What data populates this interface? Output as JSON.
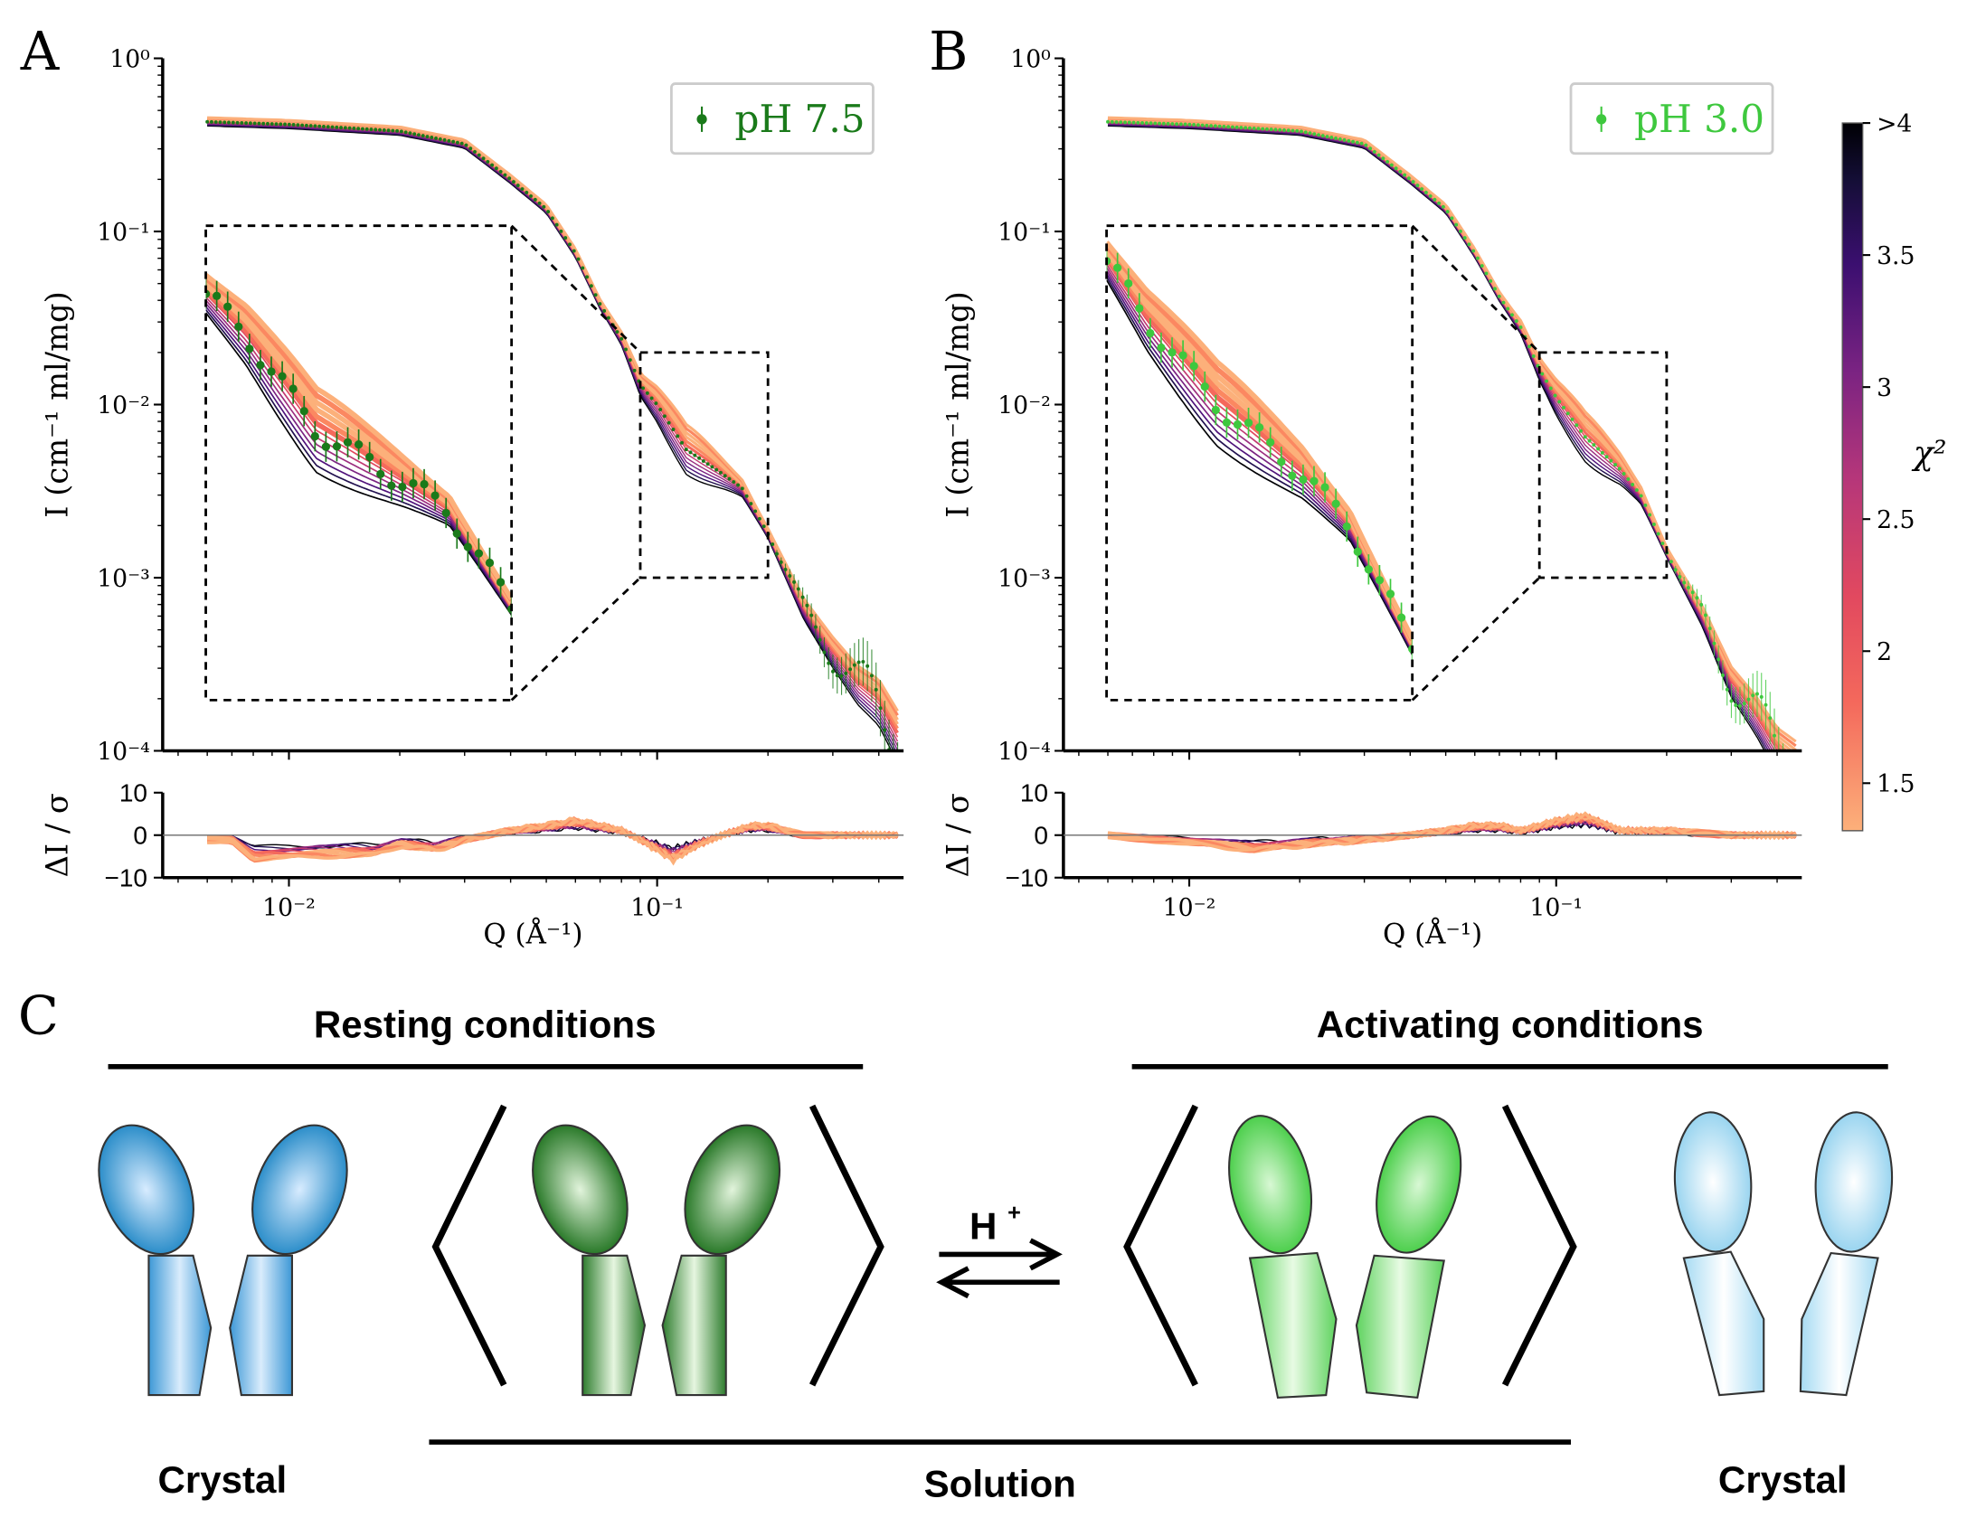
{
  "panels": {
    "A": {
      "letter": "A"
    },
    "B": {
      "letter": "B"
    },
    "C": {
      "letter": "C",
      "resting_title": "Resting conditions",
      "activating_title": "Activating conditions",
      "crystal_left": "Crystal",
      "solution": "Solution",
      "crystal_right": "Crystal",
      "proton": "H",
      "proton_sup": "+",
      "colors": {
        "crystal_rest": "#1e88c8",
        "solution_rest": "#1a6e1a",
        "solution_active": "#4ccf4c",
        "crystal_active": "#9fd6f0"
      }
    }
  },
  "colorbar": {
    "label": "χ²",
    "range": [
      1.32,
      4
    ],
    "ticks": [
      {
        "v": 1.5,
        "label": "1.5"
      },
      {
        "v": 2,
        "label": "2"
      },
      {
        "v": 2.5,
        "label": "2.5"
      },
      {
        "v": 3,
        "label": "3"
      },
      {
        "v": 3.5,
        "label": "3.5"
      },
      {
        "v": 4,
        "label": ">4"
      }
    ],
    "colormap": "magma (reversed)",
    "palette": [
      "#fcb07a",
      "#fb8861",
      "#f4695c",
      "#e2495f",
      "#c13a72",
      "#9c2e7f",
      "#7a2382",
      "#4f127b",
      "#221150",
      "#000004"
    ]
  },
  "chart_data": [
    {
      "type": "scatter",
      "panel": "A",
      "legend": "pH 7.5",
      "legend_placement": "top-right",
      "color": "#1a7a1a",
      "xlabel": "Q (Å⁻¹)",
      "ylabel": "I (cm⁻¹ ml/mg)",
      "residual_ylabel": "ΔI / σ",
      "xscale": "log",
      "yscale": "log",
      "xlim": [
        0.00454,
        0.467
      ],
      "ylim": [
        0.0001,
        1
      ],
      "x_ticks": [
        {
          "v": 0.01,
          "label": "10⁻²"
        },
        {
          "v": 0.1,
          "label": "10⁻¹"
        }
      ],
      "y_ticks": [
        {
          "v": 1,
          "label": "10⁰"
        },
        {
          "v": 0.1,
          "label": "10⁻¹"
        },
        {
          "v": 0.01,
          "label": "10⁻²"
        },
        {
          "v": 0.001,
          "label": "10⁻³"
        },
        {
          "v": 0.0001,
          "label": "10⁻⁴"
        }
      ],
      "residual_ylim": [
        -10,
        10
      ],
      "residual_ticks": [
        {
          "v": 10,
          "label": "10"
        },
        {
          "v": 0,
          "label": "0"
        },
        {
          "v": -10,
          "label": "−10"
        }
      ],
      "inset": {
        "xlim": [
          0.09,
          0.2
        ],
        "ylim": [
          0.001,
          0.02
        ]
      },
      "curve": {
        "q": [
          0.006,
          0.01,
          0.02,
          0.03,
          0.04,
          0.05,
          0.06,
          0.07,
          0.08,
          0.09,
          0.1,
          0.12,
          0.15,
          0.17,
          0.2,
          0.25,
          0.3,
          0.35,
          0.4,
          0.45
        ],
        "I": [
          0.43,
          0.415,
          0.38,
          0.32,
          0.2,
          0.135,
          0.075,
          0.038,
          0.024,
          0.013,
          0.01,
          0.0055,
          0.004,
          0.0033,
          0.0018,
          0.00066,
          0.00037,
          0.00024,
          0.00019,
          0.00012
        ]
      },
      "residual": {
        "q": [
          0.006,
          0.007,
          0.008,
          0.012,
          0.017,
          0.02,
          0.025,
          0.03,
          0.04,
          0.05,
          0.06,
          0.07,
          0.08,
          0.09,
          0.1,
          0.11,
          0.13,
          0.15,
          0.18,
          0.2,
          0.25,
          0.3,
          0.45
        ],
        "value": [
          -1,
          -1,
          -5,
          -4,
          -4,
          -2,
          -3,
          -1,
          1,
          2,
          3,
          2,
          1,
          -1,
          -3,
          -5,
          -2,
          0,
          2,
          2,
          0,
          0,
          0
        ]
      }
    },
    {
      "type": "scatter",
      "panel": "B",
      "legend": "pH 3.0",
      "legend_placement": "top-right",
      "color": "#3ec83e",
      "xlabel": "Q (Å⁻¹)",
      "ylabel": "I (cm⁻¹ ml/mg)",
      "residual_ylabel": "ΔI / σ",
      "xscale": "log",
      "yscale": "log",
      "xlim": [
        0.00454,
        0.467
      ],
      "ylim": [
        0.0001,
        1
      ],
      "x_ticks": [
        {
          "v": 0.01,
          "label": "10⁻²"
        },
        {
          "v": 0.1,
          "label": "10⁻¹"
        }
      ],
      "y_ticks": [
        {
          "v": 1,
          "label": "10⁰"
        },
        {
          "v": 0.1,
          "label": "10⁻¹"
        },
        {
          "v": 0.01,
          "label": "10⁻²"
        },
        {
          "v": 0.001,
          "label": "10⁻³"
        },
        {
          "v": 0.0001,
          "label": "10⁻⁴"
        }
      ],
      "residual_ylim": [
        -10,
        10
      ],
      "residual_ticks": [
        {
          "v": 10,
          "label": "10"
        },
        {
          "v": 0,
          "label": "0"
        },
        {
          "v": -10,
          "label": "−10"
        }
      ],
      "inset": {
        "xlim": [
          0.09,
          0.2
        ],
        "ylim": [
          0.001,
          0.02
        ]
      },
      "curve": {
        "q": [
          0.006,
          0.01,
          0.02,
          0.03,
          0.04,
          0.05,
          0.06,
          0.07,
          0.08,
          0.09,
          0.1,
          0.12,
          0.15,
          0.17,
          0.2,
          0.25,
          0.3,
          0.35,
          0.4,
          0.45
        ],
        "I": [
          0.43,
          0.415,
          0.38,
          0.32,
          0.2,
          0.135,
          0.075,
          0.042,
          0.028,
          0.016,
          0.011,
          0.0065,
          0.0042,
          0.003,
          0.0014,
          0.0006,
          0.00025,
          0.00016,
          0.0001,
          8e-05
        ]
      },
      "residual": {
        "q": [
          0.006,
          0.008,
          0.012,
          0.015,
          0.02,
          0.03,
          0.04,
          0.05,
          0.06,
          0.07,
          0.08,
          0.1,
          0.12,
          0.13,
          0.15,
          0.2,
          0.3,
          0.45
        ],
        "value": [
          0,
          -1,
          -2,
          -3,
          -2,
          -1,
          0,
          1,
          2,
          2,
          1,
          3,
          4,
          3,
          1,
          1,
          0,
          0
        ]
      }
    }
  ]
}
